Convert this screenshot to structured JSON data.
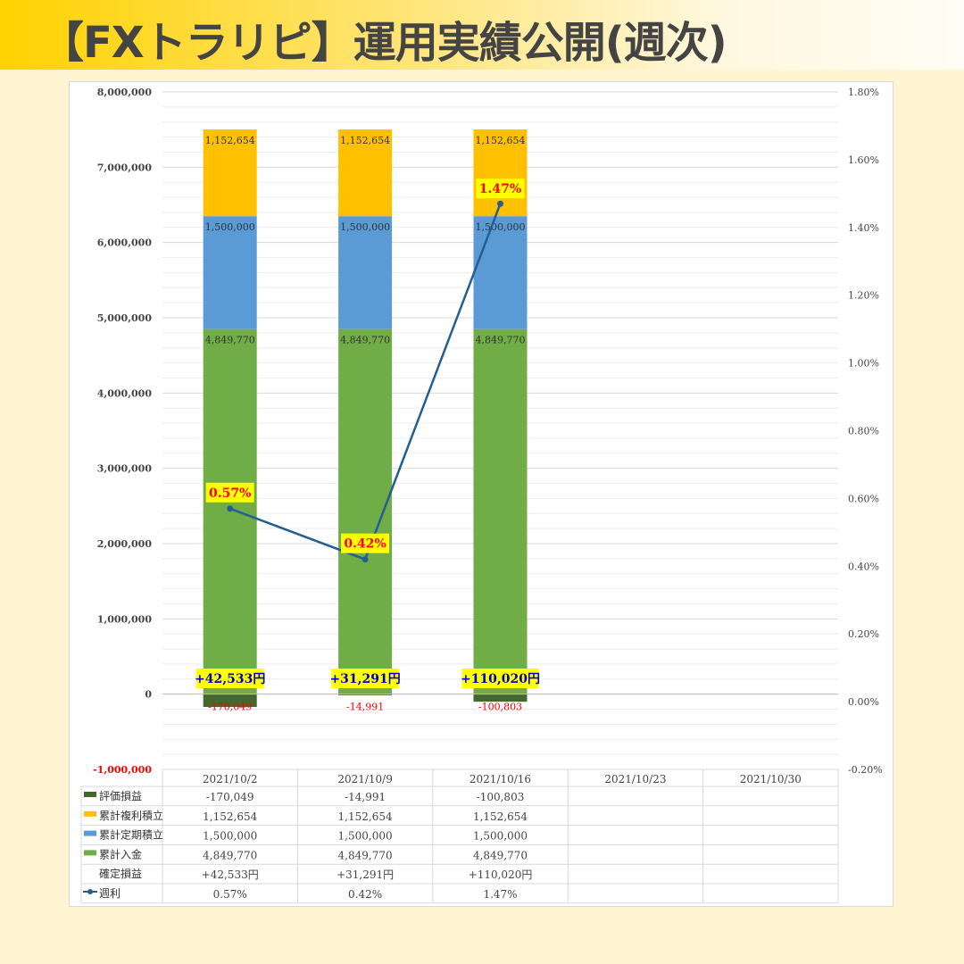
{
  "title": "【FXトラリピ】運用実績公開(週次)",
  "chart_data": {
    "type": "bar",
    "stacked": true,
    "categories": [
      "2021/10/2",
      "2021/10/9",
      "2021/10/16",
      "2021/10/23",
      "2021/10/30"
    ],
    "left_axis": {
      "ylim": [
        -1000000,
        8000000
      ],
      "ticks": [
        "8,000,000",
        "7,000,000",
        "6,000,000",
        "5,000,000",
        "4,000,000",
        "3,000,000",
        "2,000,000",
        "1,000,000",
        "0",
        "-1,000,000"
      ]
    },
    "right_axis": {
      "ylim": [
        -0.2,
        1.8
      ],
      "ticks": [
        "1.80%",
        "1.60%",
        "1.40%",
        "1.20%",
        "1.00%",
        "0.80%",
        "0.60%",
        "0.40%",
        "0.20%",
        "0.00%",
        "-0.20%"
      ]
    },
    "grid": true,
    "series": [
      {
        "name": "評価損益",
        "color": "#43682b",
        "values": [
          -170049,
          -14991,
          -100803,
          null,
          null
        ],
        "labels": [
          "-170,049",
          "-14,991",
          "-100,803",
          "",
          ""
        ]
      },
      {
        "name": "累計複利積立",
        "color": "#ffc000",
        "values": [
          1152654,
          1152654,
          1152654,
          null,
          null
        ],
        "labels": [
          "1,152,654",
          "1,152,654",
          "1,152,654",
          "",
          ""
        ]
      },
      {
        "name": "累計定期積立",
        "color": "#5b9bd5",
        "values": [
          1500000,
          1500000,
          1500000,
          null,
          null
        ],
        "labels": [
          "1,500,000",
          "1,500,000",
          "1,500,000",
          "",
          ""
        ]
      },
      {
        "name": "累計入金",
        "color": "#70ad47",
        "values": [
          4849770,
          4849770,
          4849770,
          null,
          null
        ],
        "labels": [
          "4,849,770",
          "4,849,770",
          "4,849,770",
          "",
          ""
        ]
      },
      {
        "name": "確定損益",
        "values": [
          42533,
          31291,
          110020,
          null,
          null
        ],
        "labels": [
          "+42,533円",
          "+31,291円",
          "+110,020円",
          "",
          ""
        ]
      },
      {
        "name": "週利",
        "type": "line",
        "color": "#255e91",
        "axis": "right",
        "values": [
          0.57,
          0.42,
          1.47,
          null,
          null
        ],
        "labels": [
          "0.57%",
          "0.42%",
          "1.47%",
          "",
          ""
        ]
      }
    ]
  }
}
